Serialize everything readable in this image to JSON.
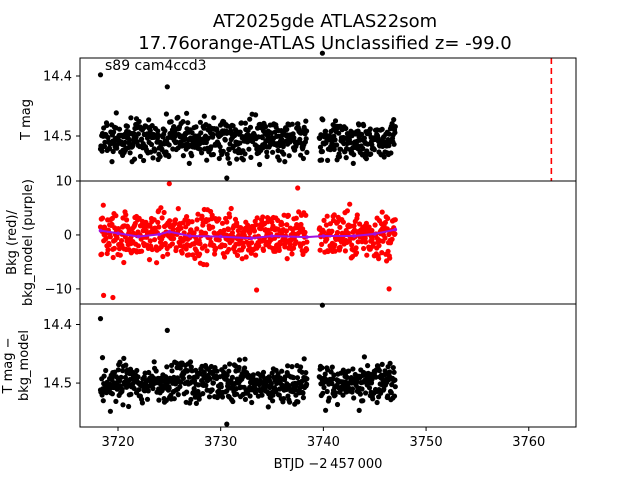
{
  "figure": {
    "title_line1": "AT2025gde  ATLAS22som",
    "title_line2": "17.76orange-ATLAS Unclassified z= -99.0",
    "xlabel": "BTJD −2 457 000"
  },
  "chart_data": [
    {
      "type": "scatter",
      "id": "tmag",
      "annotation": "s89 cam4ccd3",
      "ylabel": "T mag",
      "ylim": [
        14.37,
        14.575
      ],
      "y_inverted": true,
      "xlim": [
        3716.3,
        3764.6
      ],
      "yticks": [
        14.4,
        14.5
      ],
      "ytick_labels": [
        "14.4",
        "14.5"
      ],
      "vline": {
        "x": 3762.2,
        "color": "#ff0000",
        "style": "dashed"
      },
      "series": [
        {
          "color": "#000000",
          "segments": [
            [
              3718.3,
              3738.4
            ],
            [
              3739.6,
              3747.0
            ]
          ],
          "center": 14.505,
          "spread": 0.03
        }
      ],
      "outliers": [
        {
          "x": 3718.3,
          "y": 14.398
        },
        {
          "x": 3724.8,
          "y": 14.418
        },
        {
          "x": 3730.6,
          "y": 14.57
        },
        {
          "x": 3739.9,
          "y": 14.362
        }
      ]
    },
    {
      "type": "scatter",
      "id": "background",
      "ylabel_line1": "Bkg (red)/",
      "ylabel_line2": "bkg_model (purple)",
      "ylim": [
        -12.8,
        10.0
      ],
      "y_inverted": false,
      "xlim": [
        3716.3,
        3764.6
      ],
      "yticks": [
        10,
        0,
        -10
      ],
      "ytick_labels": [
        "10",
        "0",
        "−10"
      ],
      "series": [
        {
          "name": "Bkg",
          "color": "#ff0000",
          "segments": [
            [
              3718.3,
              3738.4
            ],
            [
              3739.6,
              3747.0
            ]
          ],
          "center": 0.0,
          "spread": 4.0
        },
        {
          "name": "bkg_model",
          "color": "#a010e0",
          "values": [
            [
              3718.3,
              0.8
            ],
            [
              3720,
              0.3
            ],
            [
              3722,
              -0.3
            ],
            [
              3724,
              0.1
            ],
            [
              3725,
              0.6
            ],
            [
              3727,
              -0.2
            ],
            [
              3730,
              -0.3
            ],
            [
              3733,
              -0.6
            ],
            [
              3735,
              -0.2
            ],
            [
              3738.4,
              -0.4
            ],
            [
              3740,
              -0.2
            ],
            [
              3743,
              -0.2
            ],
            [
              3745,
              0.2
            ],
            [
              3747,
              1.0
            ]
          ]
        }
      ],
      "outliers": [
        {
          "x": 3718.6,
          "y": -11.2
        },
        {
          "x": 3719.5,
          "y": -11.6
        },
        {
          "x": 3733.5,
          "y": -10.2
        },
        {
          "x": 3746.4,
          "y": -10.0
        },
        {
          "x": 3725.0,
          "y": 9.5
        },
        {
          "x": 3737.5,
          "y": 8.7
        }
      ]
    },
    {
      "type": "scatter",
      "id": "detrended",
      "ylabel_line1": "T mag −",
      "ylabel_line2": "bkg_model",
      "ylim": [
        14.365,
        14.575
      ],
      "y_inverted": true,
      "xlim": [
        3716.3,
        3764.6
      ],
      "yticks": [
        14.4,
        14.5
      ],
      "ytick_labels": [
        "14.4",
        "14.5"
      ],
      "xticks": [
        3720,
        3730,
        3740,
        3750,
        3760
      ],
      "xtick_labels": [
        "3720",
        "3730",
        "3740",
        "3750",
        "3760"
      ],
      "series": [
        {
          "color": "#000000",
          "segments": [
            [
              3718.3,
              3738.4
            ],
            [
              3739.6,
              3747.0
            ]
          ],
          "center": 14.5,
          "spread": 0.03
        }
      ],
      "outliers": [
        {
          "x": 3718.3,
          "y": 14.39
        },
        {
          "x": 3724.8,
          "y": 14.41
        },
        {
          "x": 3730.6,
          "y": 14.57
        },
        {
          "x": 3739.9,
          "y": 14.367
        }
      ]
    }
  ]
}
